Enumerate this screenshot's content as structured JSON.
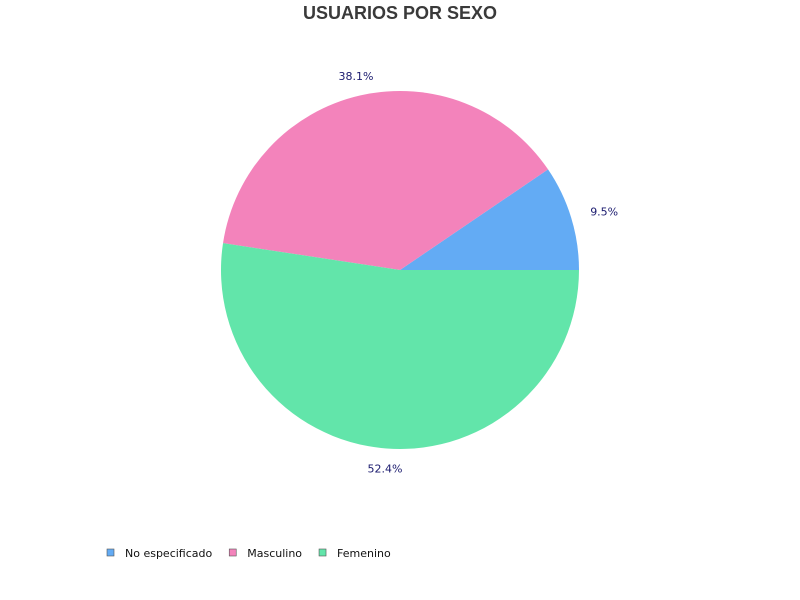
{
  "chart_data": {
    "type": "pie",
    "title": "USUARIOS POR SEXO",
    "slices": [
      {
        "label": "No especificado",
        "value": 9.5,
        "display": "9.5%",
        "color": "#63abf4"
      },
      {
        "label": "Masculino",
        "value": 38.1,
        "display": "38.1%",
        "color": "#f383bb"
      },
      {
        "label": "Femenino",
        "value": 52.4,
        "display": "52.4%",
        "color": "#62e5aa"
      }
    ],
    "start_angle_deg": 0,
    "direction": "counterclockwise",
    "legend_position": "bottom-left",
    "label_color": "#1a1a6e"
  }
}
